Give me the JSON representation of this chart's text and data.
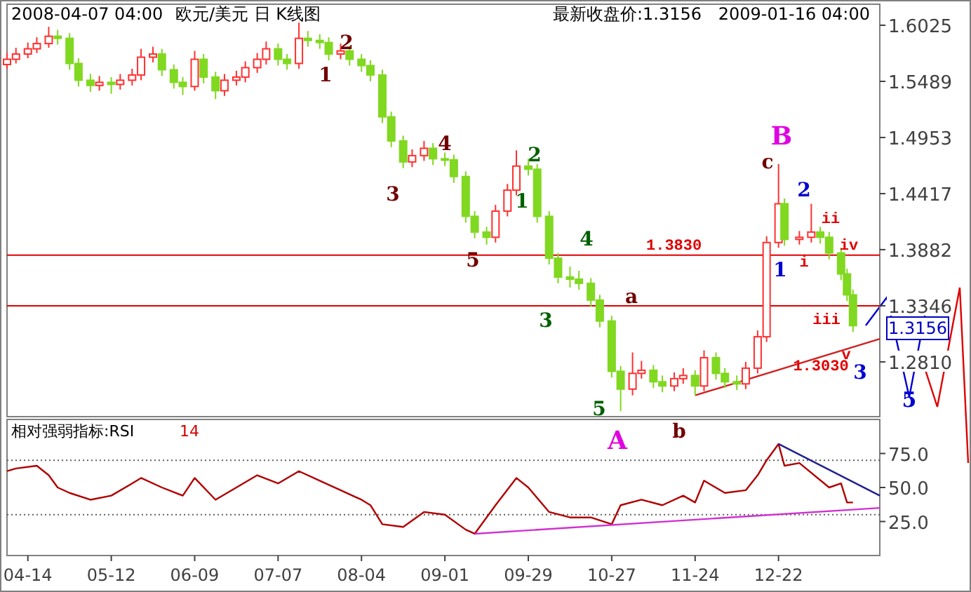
{
  "chart_data": [
    {
      "type": "candlestick",
      "title": "欧元/美元  日  K线图",
      "x": [
        "2008-04-07",
        "2008-04-10",
        "2008-04-14",
        "2008-04-17",
        "2008-04-21",
        "2008-04-24",
        "2008-04-28",
        "2008-05-01",
        "2008-05-05",
        "2008-05-08",
        "2008-05-12",
        "2008-05-15",
        "2008-05-19",
        "2008-05-22",
        "2008-05-26",
        "2008-05-29",
        "2008-06-02",
        "2008-06-05",
        "2008-06-09",
        "2008-06-12",
        "2008-06-16",
        "2008-06-19",
        "2008-06-23",
        "2008-06-26",
        "2008-06-30",
        "2008-07-03",
        "2008-07-07",
        "2008-07-10",
        "2008-07-14",
        "2008-07-17",
        "2008-07-21",
        "2008-07-24",
        "2008-07-28",
        "2008-07-31",
        "2008-08-04",
        "2008-08-07",
        "2008-08-11",
        "2008-08-14",
        "2008-08-18",
        "2008-08-21",
        "2008-08-25",
        "2008-08-28",
        "2008-09-01",
        "2008-09-04",
        "2008-09-08",
        "2008-09-11",
        "2008-09-15",
        "2008-09-18",
        "2008-09-22",
        "2008-09-25",
        "2008-09-29",
        "2008-10-02",
        "2008-10-06",
        "2008-10-09",
        "2008-10-13",
        "2008-10-16",
        "2008-10-20",
        "2008-10-23",
        "2008-10-27",
        "2008-10-30",
        "2008-11-03",
        "2008-11-06",
        "2008-11-10",
        "2008-11-13",
        "2008-11-17",
        "2008-11-20",
        "2008-11-24",
        "2008-11-27",
        "2008-12-01",
        "2008-12-04",
        "2008-12-08",
        "2008-12-11",
        "2008-12-15",
        "2008-12-18",
        "2008-12-22",
        "2008-12-24",
        "2008-12-29",
        "2009-01-02",
        "2009-01-05",
        "2009-01-08",
        "2009-01-12",
        "2009-01-14",
        "2009-01-16"
      ],
      "ohlc": [
        [
          1.565,
          1.576,
          1.561,
          1.57
        ],
        [
          1.57,
          1.581,
          1.566,
          1.575
        ],
        [
          1.575,
          1.586,
          1.571,
          1.58
        ],
        [
          1.58,
          1.591,
          1.576,
          1.585
        ],
        [
          1.585,
          1.601,
          1.581,
          1.592
        ],
        [
          1.592,
          1.598,
          1.584,
          1.59
        ],
        [
          1.59,
          1.595,
          1.56,
          1.566
        ],
        [
          1.566,
          1.571,
          1.544,
          1.55
        ],
        [
          1.55,
          1.556,
          1.539,
          1.545
        ],
        [
          1.545,
          1.554,
          1.54,
          1.548
        ],
        [
          1.548,
          1.553,
          1.537,
          1.546
        ],
        [
          1.546,
          1.556,
          1.541,
          1.55
        ],
        [
          1.55,
          1.561,
          1.545,
          1.555
        ],
        [
          1.555,
          1.58,
          1.55,
          1.572
        ],
        [
          1.572,
          1.582,
          1.567,
          1.575
        ],
        [
          1.575,
          1.58,
          1.554,
          1.56
        ],
        [
          1.56,
          1.565,
          1.542,
          1.548
        ],
        [
          1.548,
          1.553,
          1.536,
          1.544
        ],
        [
          1.544,
          1.578,
          1.54,
          1.57
        ],
        [
          1.57,
          1.575,
          1.547,
          1.553
        ],
        [
          1.553,
          1.558,
          1.532,
          1.54
        ],
        [
          1.54,
          1.556,
          1.535,
          1.55
        ],
        [
          1.55,
          1.559,
          1.545,
          1.553
        ],
        [
          1.553,
          1.568,
          1.548,
          1.562
        ],
        [
          1.562,
          1.576,
          1.557,
          1.57
        ],
        [
          1.57,
          1.587,
          1.565,
          1.58
        ],
        [
          1.58,
          1.585,
          1.564,
          1.57
        ],
        [
          1.57,
          1.575,
          1.56,
          1.566
        ],
        [
          1.566,
          1.605,
          1.561,
          1.59
        ],
        [
          1.59,
          1.597,
          1.582,
          1.588
        ],
        [
          1.588,
          1.594,
          1.58,
          1.586
        ],
        [
          1.586,
          1.591,
          1.569,
          1.575
        ],
        [
          1.575,
          1.585,
          1.57,
          1.578
        ],
        [
          1.578,
          1.583,
          1.564,
          1.57
        ],
        [
          1.57,
          1.575,
          1.558,
          1.564
        ],
        [
          1.564,
          1.569,
          1.549,
          1.555
        ],
        [
          1.555,
          1.56,
          1.509,
          1.515
        ],
        [
          1.515,
          1.52,
          1.486,
          1.492
        ],
        [
          1.492,
          1.497,
          1.466,
          1.472
        ],
        [
          1.472,
          1.484,
          1.467,
          1.478
        ],
        [
          1.478,
          1.492,
          1.473,
          1.485
        ],
        [
          1.485,
          1.49,
          1.469,
          1.475
        ],
        [
          1.475,
          1.481,
          1.468,
          1.474
        ],
        [
          1.474,
          1.479,
          1.452,
          1.458
        ],
        [
          1.458,
          1.463,
          1.414,
          1.42
        ],
        [
          1.42,
          1.425,
          1.399,
          1.405
        ],
        [
          1.405,
          1.41,
          1.393,
          1.4
        ],
        [
          1.4,
          1.431,
          1.395,
          1.425
        ],
        [
          1.425,
          1.451,
          1.42,
          1.445
        ],
        [
          1.445,
          1.483,
          1.44,
          1.468
        ],
        [
          1.468,
          1.475,
          1.459,
          1.465
        ],
        [
          1.465,
          1.47,
          1.414,
          1.42
        ],
        [
          1.42,
          1.425,
          1.374,
          1.38
        ],
        [
          1.38,
          1.385,
          1.356,
          1.362
        ],
        [
          1.362,
          1.372,
          1.352,
          1.36
        ],
        [
          1.36,
          1.368,
          1.35,
          1.356
        ],
        [
          1.356,
          1.361,
          1.334,
          1.34
        ],
        [
          1.34,
          1.345,
          1.314,
          1.32
        ],
        [
          1.32,
          1.325,
          1.266,
          1.272
        ],
        [
          1.272,
          1.277,
          1.234,
          1.255
        ],
        [
          1.255,
          1.29,
          1.249,
          1.27
        ],
        [
          1.27,
          1.282,
          1.265,
          1.273
        ],
        [
          1.273,
          1.278,
          1.256,
          1.262
        ],
        [
          1.262,
          1.268,
          1.252,
          1.258
        ],
        [
          1.258,
          1.271,
          1.253,
          1.265
        ],
        [
          1.265,
          1.275,
          1.26,
          1.268
        ],
        [
          1.268,
          1.273,
          1.249,
          1.258
        ],
        [
          1.258,
          1.292,
          1.253,
          1.285
        ],
        [
          1.285,
          1.29,
          1.264,
          1.27
        ],
        [
          1.27,
          1.275,
          1.256,
          1.262
        ],
        [
          1.262,
          1.268,
          1.254,
          1.26
        ],
        [
          1.26,
          1.281,
          1.255,
          1.275
        ],
        [
          1.275,
          1.311,
          1.27,
          1.305
        ],
        [
          1.305,
          1.401,
          1.3,
          1.395
        ],
        [
          1.395,
          1.47,
          1.39,
          1.432
        ],
        [
          1.432,
          1.437,
          1.392,
          1.398
        ],
        [
          1.398,
          1.406,
          1.393,
          1.4
        ],
        [
          1.4,
          1.432,
          1.395,
          1.405
        ],
        [
          1.405,
          1.41,
          1.394,
          1.4
        ],
        [
          1.4,
          1.405,
          1.379,
          1.385
        ],
        [
          1.385,
          1.39,
          1.359,
          1.365
        ],
        [
          1.365,
          1.37,
          1.339,
          1.345
        ],
        [
          1.345,
          1.35,
          1.3096,
          1.3156
        ]
      ],
      "series": [
        {
          "type": "line",
          "color": "#d02020",
          "x": [
            "2008-11-24",
            "2009-01-25"
          ],
          "values": [
            1.249,
            1.303
          ]
        }
      ],
      "xlim": [
        "2008-04-07",
        "2009-01-25"
      ],
      "ylim": [
        1.2287,
        1.6226
      ],
      "yticks": [
        {
          "value": 1.6025,
          "label": "1.6025"
        },
        {
          "value": 1.5489,
          "label": "1.5489"
        },
        {
          "value": 1.4953,
          "label": "1.4953"
        },
        {
          "value": 1.4417,
          "label": "1.4417"
        },
        {
          "value": 1.3882,
          "label": "1.3882"
        },
        {
          "value": 1.3346,
          "label": "1.3346"
        },
        {
          "value": 1.281,
          "label": "1.2810"
        }
      ],
      "tick_labels": "y",
      "ref_lines": [
        {
          "axis": "y",
          "value": 1.383,
          "label": "1.3830",
          "color": "#e00000"
        },
        {
          "axis": "y",
          "value": 1.3346,
          "color": "#e00000"
        }
      ],
      "annotations": [
        "2008-04-07  04:00",
        "最新收盘价:1.3156",
        "2009-01-16  04:00",
        "1",
        "2",
        "3",
        "4",
        "5",
        "1",
        "2",
        "3",
        "4",
        "5",
        "A",
        "a",
        "b",
        "c",
        "B",
        "1",
        "2",
        "3",
        "5",
        "i",
        "ii",
        "iii",
        "iv",
        "v",
        "1.3030",
        "1.3156"
      ]
    },
    {
      "type": "line",
      "title": "相对强弱指标:RSI",
      "subtitle": "14",
      "series": [
        {
          "color": "#b00000",
          "x": [
            "2008-04-07",
            "2008-04-10",
            "2008-04-17",
            "2008-04-21",
            "2008-04-24",
            "2008-04-28",
            "2008-05-05",
            "2008-05-12",
            "2008-05-19",
            "2008-05-22",
            "2008-05-29",
            "2008-06-05",
            "2008-06-09",
            "2008-06-16",
            "2008-06-23",
            "2008-06-30",
            "2008-07-07",
            "2008-07-14",
            "2008-07-21",
            "2008-07-28",
            "2008-08-04",
            "2008-08-07",
            "2008-08-11",
            "2008-08-18",
            "2008-08-25",
            "2008-09-01",
            "2008-09-08",
            "2008-09-11",
            "2008-09-18",
            "2008-09-25",
            "2008-09-29",
            "2008-10-06",
            "2008-10-13",
            "2008-10-20",
            "2008-10-27",
            "2008-10-30",
            "2008-11-06",
            "2008-11-13",
            "2008-11-20",
            "2008-11-24",
            "2008-11-27",
            "2008-12-04",
            "2008-12-11",
            "2008-12-15",
            "2008-12-18",
            "2008-12-22",
            "2008-12-24",
            "2008-12-29",
            "2009-01-08",
            "2009-01-12",
            "2009-01-14",
            "2009-01-16"
          ],
          "values": [
            62,
            64,
            66,
            59,
            50,
            46,
            41,
            44,
            53,
            57,
            50,
            44,
            57,
            41,
            50,
            59,
            53,
            62,
            55,
            48,
            41,
            37,
            23,
            21,
            32,
            30,
            19,
            16,
            37,
            57,
            50,
            32,
            28,
            28,
            23,
            37,
            41,
            37,
            44,
            39,
            55,
            46,
            48,
            59,
            70,
            82,
            66,
            68,
            50,
            53,
            39,
            39
          ]
        },
        {
          "color": "#202090",
          "x": [
            "2008-12-22",
            "2009-01-25"
          ],
          "values": [
            82,
            44
          ]
        },
        {
          "color": "#d030d0",
          "x": [
            "2008-09-11",
            "2009-01-25"
          ],
          "values": [
            16,
            35
          ]
        }
      ],
      "xlim": [
        "2008-04-07",
        "2009-01-25"
      ],
      "xticks": [
        {
          "value": "2008-04-14",
          "label": "04-14"
        },
        {
          "value": "2008-05-12",
          "label": "05-12"
        },
        {
          "value": "2008-06-09",
          "label": "06-09"
        },
        {
          "value": "2008-07-07",
          "label": "07-07"
        },
        {
          "value": "2008-08-04",
          "label": "08-04"
        },
        {
          "value": "2008-09-01",
          "label": "09-01"
        },
        {
          "value": "2008-09-29",
          "label": "09-29"
        },
        {
          "value": "2008-10-27",
          "label": "10-27"
        },
        {
          "value": "2008-11-24",
          "label": "11-24"
        },
        {
          "value": "2008-12-22",
          "label": "12-22"
        }
      ],
      "ylim": [
        0,
        100
      ],
      "yticks": [
        {
          "value": 25,
          "label": "25.0"
        },
        {
          "value": 50,
          "label": "50.0"
        },
        {
          "value": 75,
          "label": "75.0"
        }
      ],
      "ref_lines": [
        {
          "axis": "y",
          "value": 70,
          "color": "#606060",
          "line_style": "dotted"
        },
        {
          "axis": "y",
          "value": 30,
          "color": "#606060",
          "line_style": "dotted"
        }
      ]
    }
  ]
}
